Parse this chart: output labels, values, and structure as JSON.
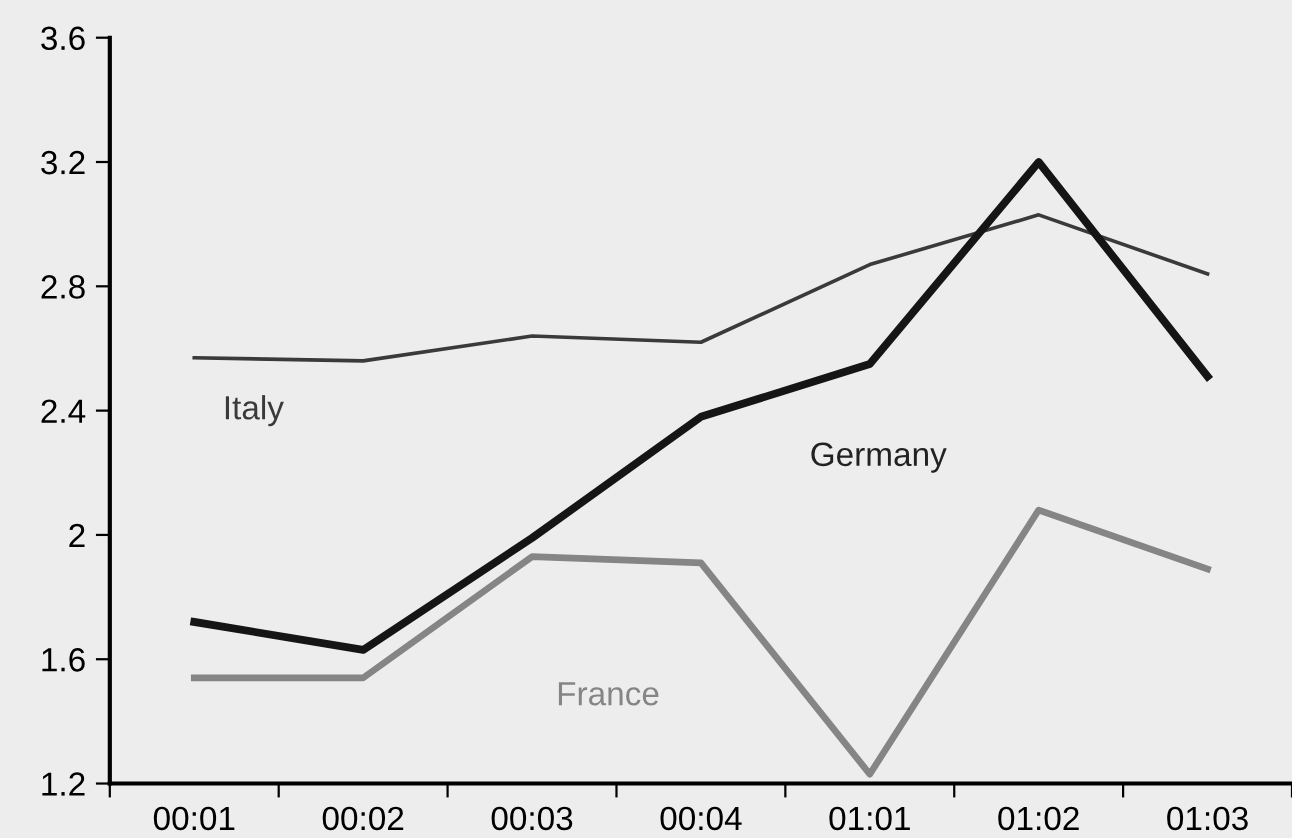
{
  "chart_data": {
    "type": "line",
    "categories": [
      "00:01",
      "00:02",
      "00:03",
      "00:04",
      "01:01",
      "01:02",
      "01:03"
    ],
    "series": [
      {
        "name": "Italy",
        "color": "#3a3a3a",
        "values": [
          2.57,
          2.56,
          2.64,
          2.62,
          2.87,
          3.03,
          2.84
        ]
      },
      {
        "name": "Germany",
        "color": "#151515",
        "values": [
          1.72,
          1.63,
          1.99,
          2.38,
          2.55,
          3.2,
          2.51
        ]
      },
      {
        "name": "France",
        "color": "#858585",
        "values": [
          1.54,
          1.54,
          1.93,
          1.91,
          1.23,
          2.08,
          1.89
        ]
      }
    ],
    "ylim": [
      1.2,
      3.6
    ],
    "yticks": [
      1.2,
      1.6,
      2,
      2.4,
      2.8,
      3.2,
      3.6
    ],
    "grid": false,
    "legend": false,
    "marker": "none",
    "line_style": "solid"
  }
}
